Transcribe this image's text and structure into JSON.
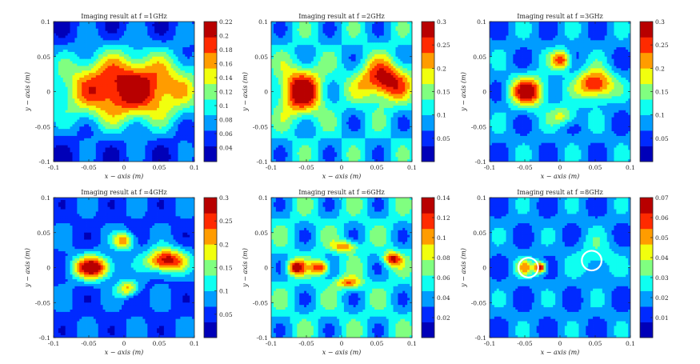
{
  "chart_data": [
    {
      "type": "heatmap",
      "title": "Imaging result at f =1GHz",
      "xlabel": "x − axis (m)",
      "ylabel": "y − axis (m)",
      "xlim": [
        -0.1,
        0.1
      ],
      "ylim": [
        -0.1,
        0.1
      ],
      "xticks": [
        "-0.1",
        "-0.05",
        "0",
        "0.05",
        "0.1"
      ],
      "yticks": [
        "0.1",
        "0.05",
        "0",
        "-0.05",
        "-0.1"
      ],
      "colorbar": {
        "min": 0.02,
        "max": 0.22,
        "ticks": [
          "0.22",
          "0.2",
          "0.18",
          "0.16",
          "0.14",
          "0.12",
          "0.1",
          "0.08",
          "0.06",
          "0.04"
        ]
      },
      "peaks": [
        {
          "x": 0.005,
          "y": 0.005,
          "value": 0.22,
          "sx": 0.07,
          "sy": 0.035
        }
      ],
      "background": 0.05,
      "annotations": []
    },
    {
      "type": "heatmap",
      "title": "Imaging result at f =2GHz",
      "xlabel": "x − axis (m)",
      "ylabel": "y − axis (m)",
      "xlim": [
        -0.1,
        0.1
      ],
      "ylim": [
        -0.1,
        0.1
      ],
      "xticks": [
        "-0.1",
        "-0.05",
        "0",
        "0.05",
        "0.1"
      ],
      "yticks": [
        "0.1",
        "0.05",
        "0",
        "-0.05",
        "-0.1"
      ],
      "colorbar": {
        "min": 0.0,
        "max": 0.3,
        "ticks": [
          "0.3",
          "0.25",
          "0.2",
          "0.15",
          "0.1",
          "0.05"
        ]
      },
      "peaks": [
        {
          "x": -0.058,
          "y": 0.0,
          "value": 0.3,
          "sx": 0.022,
          "sy": 0.024
        },
        {
          "x": 0.06,
          "y": 0.015,
          "value": 0.3,
          "sx": 0.025,
          "sy": 0.02
        }
      ],
      "background": 0.1,
      "annotations": []
    },
    {
      "type": "heatmap",
      "title": "Imaging result at f =3GHz",
      "xlabel": "x − axis (m)",
      "ylabel": "y − axis (m)",
      "xlim": [
        -0.1,
        0.1
      ],
      "ylim": [
        -0.1,
        0.1
      ],
      "xticks": [
        "-0.1",
        "-0.05",
        "0",
        "0.05",
        "0.1"
      ],
      "yticks": [
        "0.1",
        "0.05",
        "0",
        "-0.05",
        "-0.1"
      ],
      "colorbar": {
        "min": 0.0,
        "max": 0.3,
        "ticks": [
          "0.3",
          "0.25",
          "0.2",
          "0.15",
          "0.1",
          "0.05"
        ]
      },
      "peaks": [
        {
          "x": -0.045,
          "y": 0.0,
          "value": 0.29,
          "sx": 0.018,
          "sy": 0.015
        },
        {
          "x": 0.05,
          "y": 0.01,
          "value": 0.29,
          "sx": 0.018,
          "sy": 0.015
        },
        {
          "x": 0.002,
          "y": 0.045,
          "value": 0.26,
          "sx": 0.01,
          "sy": 0.01
        },
        {
          "x": 0.005,
          "y": -0.035,
          "value": 0.18,
          "sx": 0.014,
          "sy": 0.01
        }
      ],
      "background": 0.08,
      "annotations": []
    },
    {
      "type": "heatmap",
      "title": "Imaging result at f =4GHz",
      "xlabel": "x − axis (m)",
      "ylabel": "y − axis (m)",
      "xlim": [
        -0.1,
        0.1
      ],
      "ylim": [
        -0.1,
        0.1
      ],
      "xticks": [
        "-0.1",
        "-0.05",
        "0",
        "0.05",
        "0.1"
      ],
      "yticks": [
        "0.1",
        "0.05",
        "0",
        "-0.05",
        "-0.1"
      ],
      "colorbar": {
        "min": 0.0,
        "max": 0.3,
        "ticks": [
          "0.3",
          "0.25",
          "0.2",
          "0.15",
          "0.1",
          "0.05"
        ]
      },
      "peaks": [
        {
          "x": -0.045,
          "y": 0.0,
          "value": 0.3,
          "sx": 0.02,
          "sy": 0.012
        },
        {
          "x": 0.06,
          "y": 0.01,
          "value": 0.3,
          "sx": 0.02,
          "sy": 0.012
        },
        {
          "x": 0.0,
          "y": 0.038,
          "value": 0.22,
          "sx": 0.011,
          "sy": 0.009
        },
        {
          "x": 0.005,
          "y": -0.03,
          "value": 0.21,
          "sx": 0.011,
          "sy": 0.008
        }
      ],
      "background": 0.06,
      "annotations": []
    },
    {
      "type": "heatmap",
      "title": "Imaging result at f =6GHz",
      "xlabel": "x − axis (m)",
      "ylabel": "y − axis (m)",
      "xlim": [
        -0.1,
        0.1
      ],
      "ylim": [
        -0.1,
        0.1
      ],
      "xticks": [
        "-0.1",
        "-0.05",
        "0",
        "0.05",
        "0.1"
      ],
      "yticks": [
        "0.1",
        "0.05",
        "0",
        "-0.05",
        "-0.1"
      ],
      "colorbar": {
        "min": 0.0,
        "max": 0.14,
        "ticks": [
          "0.14",
          "0.12",
          "0.1",
          "0.08",
          "0.06",
          "0.04",
          "0.02"
        ]
      },
      "peaks": [
        {
          "x": -0.065,
          "y": 0.0,
          "value": 0.135,
          "sx": 0.009,
          "sy": 0.007
        },
        {
          "x": -0.03,
          "y": 0.0,
          "value": 0.135,
          "sx": 0.009,
          "sy": 0.007
        },
        {
          "x": 0.072,
          "y": 0.012,
          "value": 0.13,
          "sx": 0.009,
          "sy": 0.007
        },
        {
          "x": 0.005,
          "y": 0.03,
          "value": 0.11,
          "sx": 0.012,
          "sy": 0.006
        },
        {
          "x": 0.01,
          "y": -0.022,
          "value": 0.11,
          "sx": 0.013,
          "sy": 0.006
        }
      ],
      "background": 0.05,
      "annotations": []
    },
    {
      "type": "heatmap",
      "title": "Imaging result at f =8GHz",
      "xlabel": "x − axis (m)",
      "ylabel": "y − axis (m)",
      "xlim": [
        -0.1,
        0.1
      ],
      "ylim": [
        -0.1,
        0.1
      ],
      "xticks": [
        "-0.1",
        "-0.05",
        "0",
        "0.05",
        "0.1"
      ],
      "yticks": [
        "0.1",
        "0.05",
        "0",
        "-0.05",
        "-0.1"
      ],
      "colorbar": {
        "min": 0.0,
        "max": 0.07,
        "ticks": [
          "0.07",
          "0.06",
          "0.05",
          "0.04",
          "0.03",
          "0.02",
          "0.01"
        ]
      },
      "peaks": [
        {
          "x": -0.028,
          "y": 0.0,
          "value": 0.07,
          "sx": 0.006,
          "sy": 0.006
        },
        {
          "x": -0.05,
          "y": 0.0,
          "value": 0.045,
          "sx": 0.008,
          "sy": 0.008
        },
        {
          "x": 0.05,
          "y": 0.015,
          "value": 0.03,
          "sx": 0.02,
          "sy": 0.02
        }
      ],
      "background": 0.018,
      "annotations": [
        {
          "shape": "circle",
          "x": -0.045,
          "y": 0.0,
          "r": 0.014,
          "color": "#ffffff"
        },
        {
          "shape": "circle",
          "x": 0.045,
          "y": 0.01,
          "r": 0.014,
          "color": "#ffffff"
        }
      ]
    }
  ],
  "colormap": "jet",
  "ui": {
    "accent_color": "#800000"
  }
}
